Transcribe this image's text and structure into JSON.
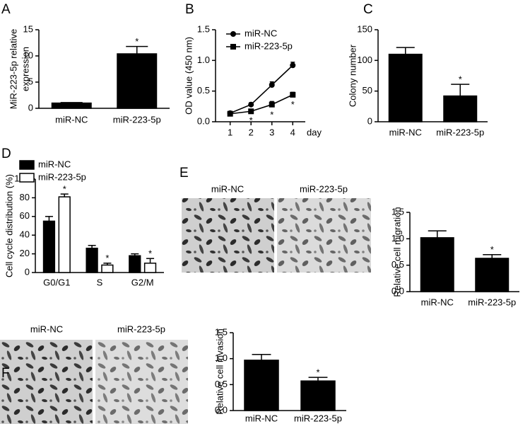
{
  "chart_data": [
    {
      "type": "bar",
      "panel": "A",
      "ylabel": [
        "MiR-223-5p relative",
        "expression"
      ],
      "categories": [
        "miR-NC",
        "miR-223-5p"
      ],
      "values": [
        1,
        10.4
      ],
      "errors": [
        0.1,
        1.4
      ],
      "annotations": [
        null,
        "*"
      ],
      "color": "#000000",
      "ylim": [
        0,
        15
      ],
      "yticks": [
        0,
        5,
        10,
        15
      ]
    },
    {
      "type": "line",
      "panel": "B",
      "ylabel": "OD value (450 nm)",
      "xlabel": "day",
      "x": [
        1,
        2,
        3,
        4
      ],
      "xlim": [
        0.3,
        4.6
      ],
      "xticks": [
        1,
        2,
        3,
        4
      ],
      "ylim": [
        0,
        1.5
      ],
      "yticks": [
        {
          "value": 0,
          "label": "0.0"
        },
        {
          "value": 0.5,
          "label": "0.5"
        },
        {
          "value": 1,
          "label": "1.0"
        },
        {
          "value": 1.5,
          "label": "1.5"
        }
      ],
      "legend": "upper left",
      "series": [
        {
          "name": "miR-NC",
          "color": "#000000",
          "marker": "circle",
          "values": [
            0.14,
            0.28,
            0.6,
            0.92
          ],
          "errors": [
            0.03,
            0.03,
            0.05,
            0.05
          ]
        },
        {
          "name": "miR-223-5p",
          "color": "#000000",
          "marker": "square",
          "values": [
            0.13,
            0.17,
            0.28,
            0.44
          ],
          "errors": [
            0.03,
            0.03,
            0.05,
            0.04
          ],
          "annotations": [
            null,
            "*",
            "*",
            "*"
          ]
        }
      ]
    },
    {
      "type": "bar",
      "panel": "C",
      "ylabel": "Colony number",
      "categories": [
        "miR-NC",
        "miR-223-5p"
      ],
      "values": [
        110,
        42
      ],
      "errors": [
        11,
        19
      ],
      "annotations": [
        null,
        "*"
      ],
      "color": "#000000",
      "ylim": [
        0,
        150
      ],
      "yticks": [
        0,
        50,
        100,
        150
      ]
    },
    {
      "type": "bar",
      "panel": "D",
      "ylabel": "Cell cycle distribution (%)",
      "categories": [
        "G0/G1",
        "S",
        "G2/M"
      ],
      "legend": "upper left",
      "series": [
        {
          "name": "miR-NC",
          "color": "#000000",
          "values": [
            55,
            26,
            18
          ],
          "errors": [
            5,
            3,
            2
          ]
        },
        {
          "name": "miR-223-5p",
          "color": "#ffffff",
          "values": [
            81,
            8,
            10
          ],
          "errors": [
            3,
            2,
            5
          ],
          "annotations": [
            "*",
            "*",
            "*"
          ]
        }
      ],
      "ylim": [
        0,
        100
      ],
      "yticks": [
        0,
        20,
        40,
        60,
        80,
        100
      ]
    },
    {
      "type": "bar",
      "panel": "E",
      "images": [
        "miR-NC",
        "miR-223-5p"
      ],
      "ylabel": "Relative cell migration",
      "categories": [
        "miR-NC",
        "miR-223-5p"
      ],
      "values": [
        1.02,
        0.63
      ],
      "errors": [
        0.13,
        0.07
      ],
      "annotations": [
        null,
        "*"
      ],
      "color": "#000000",
      "ylim": [
        0,
        1.5
      ],
      "yticks": [
        {
          "value": 0,
          "label": "0.0"
        },
        {
          "value": 0.5,
          "label": "0.5"
        },
        {
          "value": 1,
          "label": "1.0"
        },
        {
          "value": 1.5,
          "label": "1.5"
        }
      ]
    },
    {
      "type": "bar",
      "panel": "F",
      "images": [
        "miR-NC",
        "miR-223-5p"
      ],
      "ylabel": "Relative cell invasion",
      "categories": [
        "miR-NC",
        "miR-223-5p"
      ],
      "values": [
        0.97,
        0.57
      ],
      "errors": [
        0.11,
        0.07
      ],
      "annotations": [
        null,
        "*"
      ],
      "color": "#000000",
      "ylim": [
        0,
        1.5
      ],
      "yticks": [
        {
          "value": 0,
          "label": "0.0"
        },
        {
          "value": 0.5,
          "label": "0.5"
        },
        {
          "value": 1,
          "label": "1.0"
        },
        {
          "value": 1.5,
          "label": "1.5"
        }
      ]
    }
  ]
}
